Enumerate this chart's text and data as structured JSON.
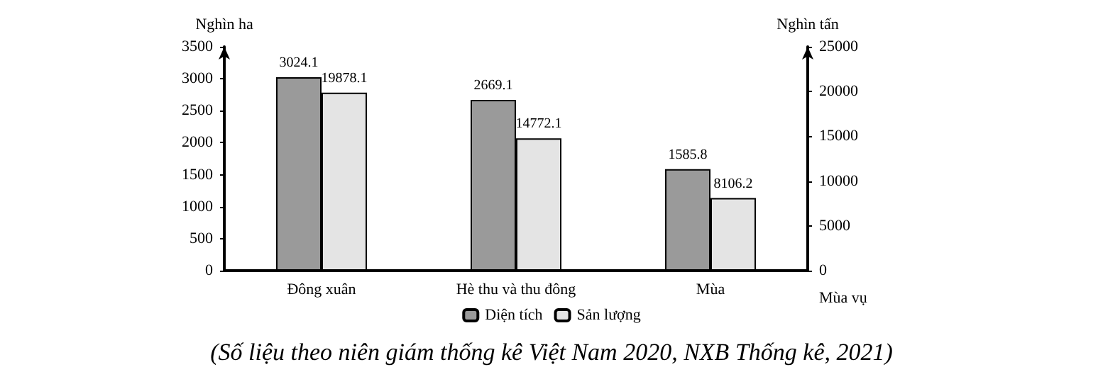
{
  "chart_data": {
    "type": "bar",
    "categories": [
      "Đông xuân",
      "Hè thu và thu đông",
      "Mùa"
    ],
    "xlabel": "Mùa vụ",
    "ylabel": "Nghìn ha",
    "y2label": "Nghìn tấn",
    "series": [
      {
        "name": "Diện tích",
        "color": "#9a9a9a",
        "values": [
          3024.1,
          2669.1,
          1585.8
        ]
      },
      {
        "name": "Sản lượng",
        "color": "#e4e4e4",
        "values": [
          19878.1,
          14772.1,
          8106.2
        ],
        "axis": "y2"
      }
    ],
    "ylim": [
      0,
      3500
    ],
    "yticks": [
      0,
      500,
      1000,
      1500,
      2000,
      2500,
      3000,
      3500
    ],
    "y2lim": [
      0,
      25000
    ],
    "y2ticks": [
      0,
      5000,
      10000,
      15000,
      20000,
      25000
    ],
    "data_labels": true,
    "legend": "bottom",
    "grid": false,
    "annotations": [
      "(Số liệu theo niên giám thống kê Việt Nam 2020, NXB Thống kê, 2021)"
    ]
  }
}
